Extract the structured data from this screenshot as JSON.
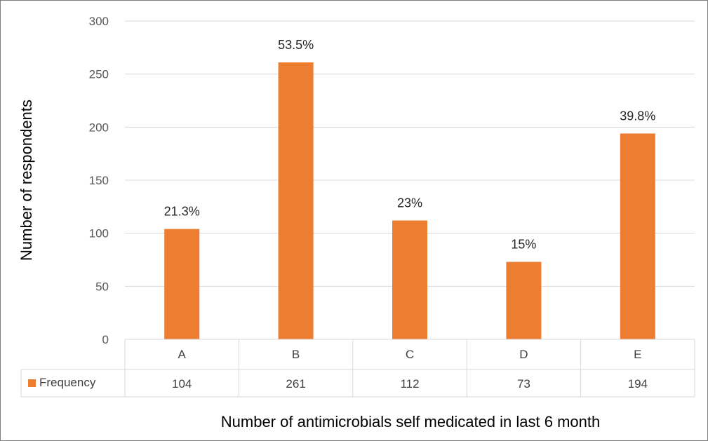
{
  "chart_data": {
    "type": "bar",
    "categories": [
      "A",
      "B",
      "C",
      "D",
      "E"
    ],
    "series": [
      {
        "name": "Frequency",
        "values": [
          104,
          261,
          112,
          73,
          194
        ],
        "color": "#ed7d31"
      }
    ],
    "data_labels": [
      "21.3%",
      "53.5%",
      "23%",
      "15%",
      "39.8%"
    ],
    "xlabel": "Number of antimicrobials self medicated in last 6 month",
    "ylabel": "Number of respondents",
    "ylim": [
      0,
      300
    ],
    "yticks": [
      0,
      50,
      100,
      150,
      200,
      250,
      300
    ],
    "grid": true,
    "legend": "data-table",
    "data_table": true
  }
}
